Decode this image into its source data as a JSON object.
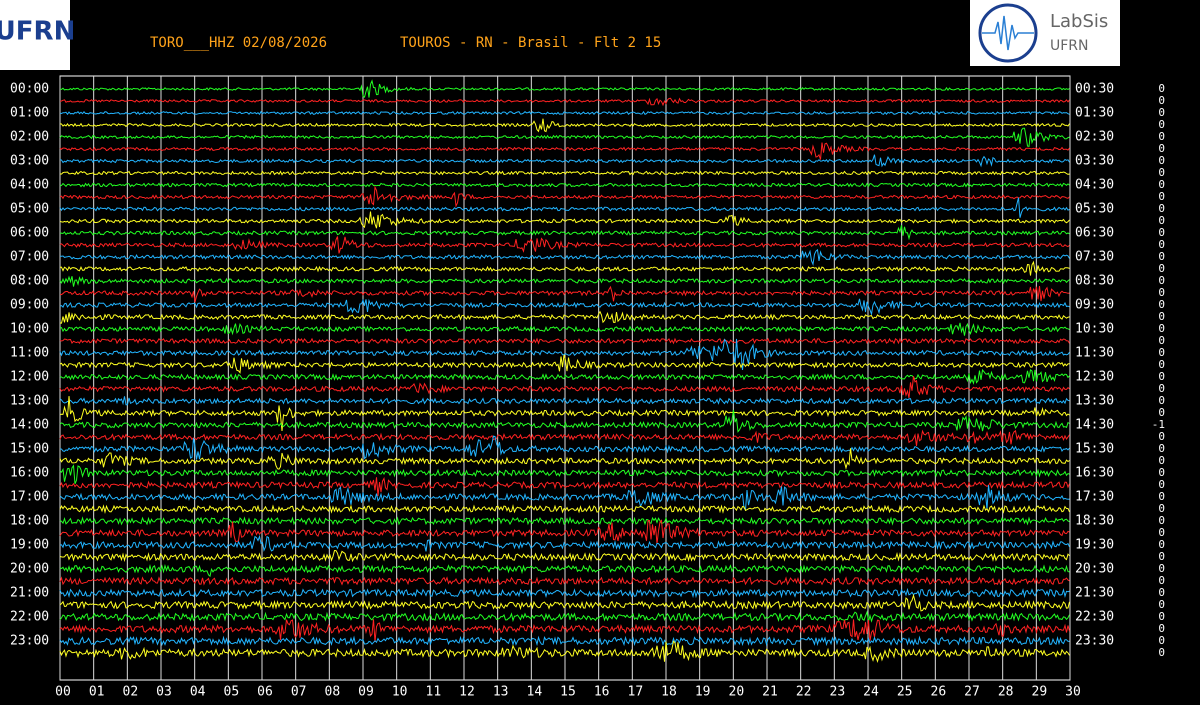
{
  "header": {
    "station": "TORO___HHZ 02/08/2026",
    "location": "TOUROS - RN - Brasil - Flt 2 15"
  },
  "logos": {
    "left": "UFRN",
    "right_title": "LabSis",
    "right_subtitle": "UFRN"
  },
  "left_labels": [
    "00:00",
    "01:00",
    "02:00",
    "03:00",
    "04:00",
    "05:00",
    "06:00",
    "07:00",
    "08:00",
    "09:00",
    "10:00",
    "11:00",
    "12:00",
    "13:00",
    "14:00",
    "15:00",
    "16:00",
    "17:00",
    "18:00",
    "19:00",
    "20:00",
    "21:00",
    "22:00",
    "23:00"
  ],
  "right_labels": [
    "00:30",
    "01:30",
    "02:30",
    "03:30",
    "04:30",
    "05:30",
    "06:30",
    "07:30",
    "08:30",
    "09:30",
    "10:30",
    "11:30",
    "12:30",
    "13:30",
    "14:30",
    "15:30",
    "16:30",
    "17:30",
    "18:30",
    "19:30",
    "20:30",
    "21:30",
    "22:30",
    "23:30"
  ],
  "trace_values": [
    0,
    0,
    0,
    0,
    0,
    0,
    0,
    0,
    0,
    0,
    0,
    0,
    0,
    0,
    0,
    0,
    0,
    0,
    0,
    0,
    0,
    0,
    0,
    0,
    0,
    0,
    0,
    0,
    -1,
    0,
    0,
    0,
    0,
    0,
    0,
    0,
    0,
    0,
    0,
    0,
    0,
    0,
    0,
    0,
    0,
    0,
    0,
    0
  ],
  "x_labels": [
    "00",
    "01",
    "02",
    "03",
    "04",
    "05",
    "06",
    "07",
    "08",
    "09",
    "10",
    "11",
    "12",
    "13",
    "14",
    "15",
    "16",
    "17",
    "18",
    "19",
    "20",
    "21",
    "22",
    "23",
    "24",
    "25",
    "26",
    "27",
    "28",
    "29",
    "30"
  ]
}
